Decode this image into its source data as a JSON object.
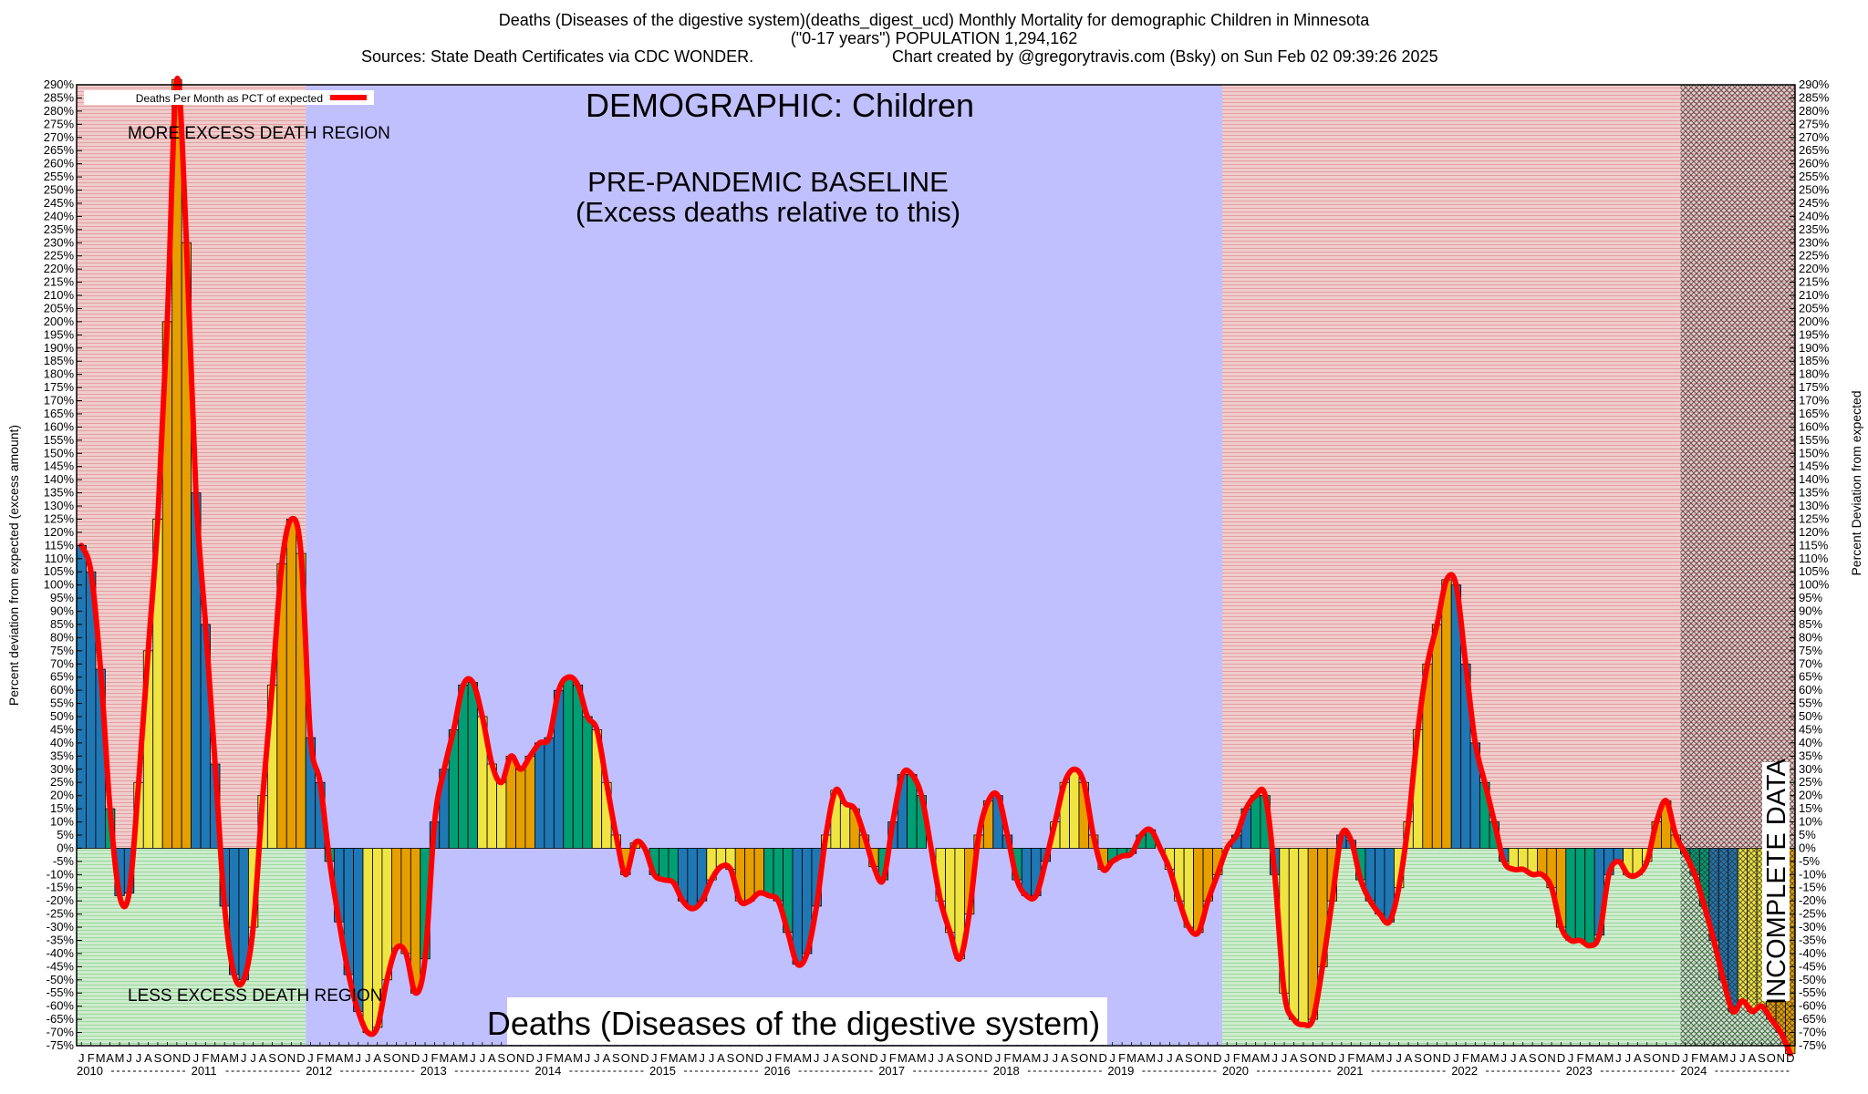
{
  "header": {
    "title_line1": "Deaths (Diseases of the digestive system)(deaths_digest_ucd) Monthly Mortality for demographic Children in Minnesota",
    "title_line2": "(\"0-17 years\") POPULATION 1,294,162",
    "sources": "Sources: State Death Certificates via CDC WONDER.",
    "credit": "Chart created by @gregorytravis.com (Bsky) on Sun Feb 02 09:39:26 2025"
  },
  "chart_data": {
    "type": "bar",
    "ylabel_left": "Percent deviation from expected (excess amount)",
    "ylabel_right": "Percent Deviation from expected",
    "ylim": [
      -75,
      290
    ],
    "ytick_step": 5,
    "ytick_suffix": "%",
    "legend": {
      "label": "Deaths Per Month as PCT of expected",
      "position": "top-left",
      "color": "#ff0000"
    },
    "annotations": {
      "demographic": "DEMOGRAPHIC: Children",
      "baseline_line1": "PRE-PANDEMIC BASELINE",
      "baseline_line2": "(Excess deaths relative to this)",
      "more_region": "MORE EXCESS DEATH REGION",
      "less_region": "LESS EXCESS DEATH REGION",
      "cause": "Deaths (Diseases of the digestive system)",
      "incomplete": "INCOMPLETE DATA"
    },
    "month_letters": [
      "J",
      "F",
      "M",
      "A",
      "M",
      "J",
      "J",
      "A",
      "S",
      "O",
      "N",
      "D"
    ],
    "years": [
      "2010",
      "2011",
      "2012",
      "2013",
      "2014",
      "2015",
      "2016",
      "2017",
      "2018",
      "2019",
      "2020",
      "2021",
      "2022",
      "2023",
      "2024"
    ],
    "regions": [
      {
        "name": "early-pre-baseline",
        "start": "2010-01",
        "end": "2011-12"
      },
      {
        "name": "pre-pandemic-baseline",
        "start": "2012-01",
        "end": "2019-12"
      },
      {
        "name": "pandemic",
        "start": "2020-01",
        "end": "2023-12"
      },
      {
        "name": "incomplete",
        "start": "2024-01",
        "end": "2024-12"
      }
    ],
    "colors": {
      "bar_blue": "#1f77b4",
      "bar_yellow": "#f0e442",
      "bar_orange": "#e69f00",
      "bar_green": "#009e73",
      "line": "#ff0000",
      "excess_region": "#e8b3b3",
      "deficit_region": "#b3e0b3",
      "baseline_region": "#c0c0ff"
    },
    "values": [
      115,
      105,
      68,
      15,
      -18,
      -17,
      25,
      75,
      125,
      200,
      292,
      230,
      135,
      85,
      32,
      -22,
      -48,
      -50,
      -30,
      20,
      62,
      108,
      125,
      112,
      42,
      25,
      -5,
      -28,
      -48,
      -62,
      -70,
      -68,
      -50,
      -38,
      -40,
      -55,
      -42,
      10,
      30,
      45,
      62,
      63,
      50,
      32,
      25,
      35,
      30,
      35,
      40,
      42,
      60,
      65,
      62,
      50,
      45,
      25,
      5,
      -10,
      2,
      0,
      -10,
      -12,
      -13,
      -20,
      -23,
      -20,
      -12,
      -7,
      -8,
      -20,
      -20,
      -17,
      -18,
      -20,
      -32,
      -44,
      -40,
      -22,
      5,
      22,
      17,
      15,
      5,
      -7,
      -12,
      10,
      28,
      28,
      20,
      0,
      -20,
      -32,
      -42,
      -25,
      5,
      18,
      20,
      5,
      -12,
      -18,
      -18,
      -5,
      10,
      25,
      30,
      25,
      5,
      -8,
      -5,
      -3,
      -2,
      5,
      7,
      0,
      -8,
      -20,
      -30,
      -32,
      -20,
      -10,
      0,
      5,
      15,
      20,
      20,
      -10,
      -55,
      -65,
      -67,
      -65,
      -45,
      -20,
      5,
      3,
      -12,
      -20,
      -25,
      -28,
      -15,
      10,
      45,
      70,
      85,
      102,
      100,
      70,
      40,
      25,
      10,
      -5,
      -8,
      -8,
      -10,
      -10,
      -15,
      -30,
      -35,
      -35,
      -37,
      -33,
      -10,
      -5,
      -10,
      -10,
      -5,
      10,
      18,
      5,
      -2,
      -10,
      -22,
      -35,
      -50,
      -62,
      -58,
      -62,
      -60,
      -65,
      -70,
      -78
    ]
  }
}
